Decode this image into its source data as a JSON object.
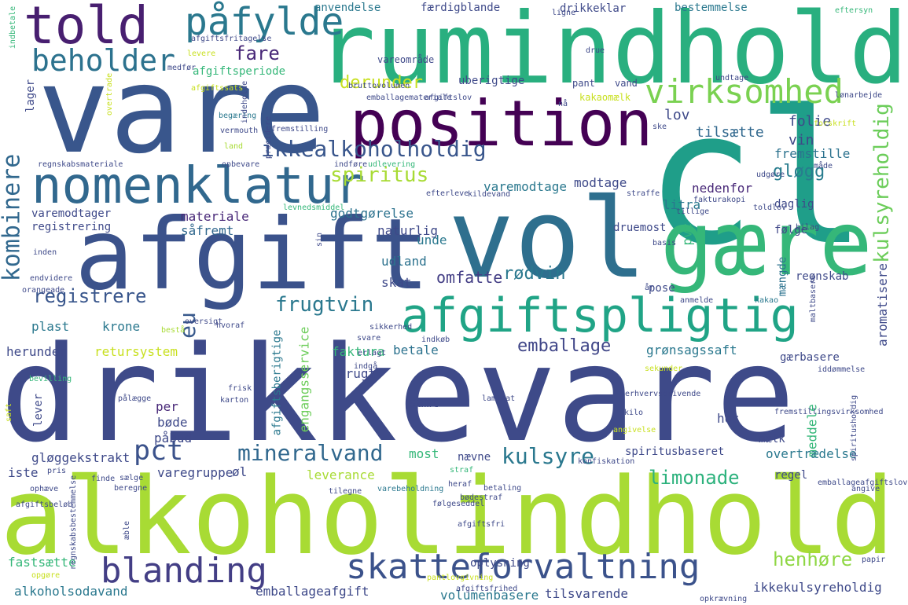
{
  "palette": [
    "#440154",
    "#3b528b",
    "#21918c",
    "#5ec962",
    "#a0da39",
    "#fde725"
  ],
  "words": [
    {
      "text": "drikkevare",
      "color": "#3e4a89"
    },
    {
      "text": "alkoholindhold",
      "color": "#a8db34"
    },
    {
      "text": "vare",
      "color": "#39568c"
    },
    {
      "text": "rumindhold",
      "color": "#29af7f"
    },
    {
      "text": "cl",
      "color": "#1f9e89"
    },
    {
      "text": "vol",
      "color": "#2e6f8e"
    },
    {
      "text": "afgift",
      "color": "#3b528b"
    },
    {
      "text": "gære",
      "color": "#35b779"
    },
    {
      "text": "position",
      "color": "#440154"
    },
    {
      "text": "nomenklatur",
      "color": "#31688e"
    },
    {
      "text": "afgiftspligtig",
      "color": "#20a486"
    },
    {
      "text": "told",
      "color": "#481f70"
    },
    {
      "text": "påfylde",
      "color": "#2a788e"
    },
    {
      "text": "beholder",
      "color": "#2c728e"
    },
    {
      "text": "virksomhed",
      "color": "#7ad151"
    },
    {
      "text": "skatteforvaltning",
      "color": "#3b528b"
    },
    {
      "text": "blanding",
      "color": "#433e85"
    },
    {
      "text": "kombinere",
      "color": "#31688e"
    },
    {
      "text": "ikkealkoholholdig",
      "color": "#39568c"
    },
    {
      "text": "kulsyreholdig",
      "color": "#6ccd5a"
    },
    {
      "text": "spiritus",
      "color": "#a8db34"
    },
    {
      "text": "registrere",
      "color": "#39568c"
    },
    {
      "text": "frugtvin",
      "color": "#2a788e"
    },
    {
      "text": "omfatte",
      "color": "#433e85"
    },
    {
      "text": "rødvin",
      "color": "#2a788e"
    },
    {
      "text": "mineralvand",
      "color": "#31688e"
    },
    {
      "text": "kulsyre",
      "color": "#2a788e"
    },
    {
      "text": "emballage",
      "color": "#404688"
    },
    {
      "text": "limonade",
      "color": "#2db27d"
    },
    {
      "text": "henhøre",
      "color": "#8fd744"
    },
    {
      "text": "pct",
      "color": "#3b528b"
    },
    {
      "text": "eu",
      "color": "#38598c"
    },
    {
      "text": "gløgg",
      "color": "#287c8e"
    },
    {
      "text": "derunder",
      "color": "#c8e020"
    },
    {
      "text": "vin",
      "color": "#3f4788"
    },
    {
      "text": "fare",
      "color": "#482878"
    },
    {
      "text": "tilsætte",
      "color": "#31688e"
    },
    {
      "text": "folie",
      "color": "#3e4989"
    },
    {
      "text": "lov",
      "color": "#3e4989"
    },
    {
      "text": "fremstille",
      "color": "#2c728e"
    },
    {
      "text": "litra",
      "color": "#2a788e"
    },
    {
      "text": "pvc",
      "color": "#35b779"
    },
    {
      "text": "nedenfor",
      "color": "#482878"
    },
    {
      "text": "daglig",
      "color": "#3e4989"
    },
    {
      "text": "følge",
      "color": "#3f4788"
    },
    {
      "text": "modtage",
      "color": "#3e4989"
    },
    {
      "text": "varemodtage",
      "color": "#2a788e"
    },
    {
      "text": "varemodtager",
      "color": "#3e4989"
    },
    {
      "text": "registrering",
      "color": "#3e4989"
    },
    {
      "text": "materiale",
      "color": "#482878"
    },
    {
      "text": "godtgørelse",
      "color": "#2c728e"
    },
    {
      "text": "såfremt",
      "color": "#31688e"
    },
    {
      "text": "naturlig",
      "color": "#3e4989"
    },
    {
      "text": "druemost",
      "color": "#3e4989"
    },
    {
      "text": "unde",
      "color": "#2a788e"
    },
    {
      "text": "udland",
      "color": "#2c728e"
    },
    {
      "text": "skat",
      "color": "#3e4989"
    },
    {
      "text": "pose",
      "color": "#3e4989"
    },
    {
      "text": "mængde",
      "color": "#2c728e"
    },
    {
      "text": "regnskab",
      "color": "#3e4989"
    },
    {
      "text": "plast",
      "color": "#2a788e"
    },
    {
      "text": "krone",
      "color": "#2a788e"
    },
    {
      "text": "aromatisere",
      "color": "#3e4989"
    },
    {
      "text": "herunder",
      "color": "#3e4989"
    },
    {
      "text": "retursystem",
      "color": "#c8e020"
    },
    {
      "text": "faktura",
      "color": "#35b779"
    },
    {
      "text": "engangsservice",
      "color": "#6ccd5a"
    },
    {
      "text": "betale",
      "color": "#2c728e"
    },
    {
      "text": "grønsagssaft",
      "color": "#2a788e"
    },
    {
      "text": "gærbasere",
      "color": "#3e4989"
    },
    {
      "text": "afgiftsberigtige",
      "color": "#2a788e"
    },
    {
      "text": "frugt",
      "color": "#3e4989"
    },
    {
      "text": "lever",
      "color": "#3e4989"
    },
    {
      "text": "per",
      "color": "#482878"
    },
    {
      "text": "bøde",
      "color": "#3e4989"
    },
    {
      "text": "påbud",
      "color": "#3e4989"
    },
    {
      "text": "samt",
      "color": "#3e4989"
    },
    {
      "text": "hos",
      "color": "#3e4989"
    },
    {
      "text": "meddele",
      "color": "#35b779"
    },
    {
      "text": "mælk",
      "color": "#3e4989"
    },
    {
      "text": "overtrædelse",
      "color": "#2a788e"
    },
    {
      "text": "regel",
      "color": "#3e4989"
    },
    {
      "text": "gløggekstrakt",
      "color": "#3e4989"
    },
    {
      "text": "most",
      "color": "#35b779"
    },
    {
      "text": "nævne",
      "color": "#3e4989"
    },
    {
      "text": "spiritusbaseret",
      "color": "#3e4989"
    },
    {
      "text": "iste",
      "color": "#3e4989"
    },
    {
      "text": "varegruppe",
      "color": "#3e4989"
    },
    {
      "text": "øl",
      "color": "#3e4989"
    },
    {
      "text": "leverance",
      "color": "#a8db34"
    },
    {
      "text": "fastsætte",
      "color": "#35b779"
    },
    {
      "text": "oplysning",
      "color": "#3e4989"
    },
    {
      "text": "alkoholsodavand",
      "color": "#2a788e"
    },
    {
      "text": "emballageafgift",
      "color": "#3e4989"
    },
    {
      "text": "volumenbasere",
      "color": "#2a788e"
    },
    {
      "text": "tilsvarende",
      "color": "#3e4989"
    },
    {
      "text": "ikkekulsyreholdig",
      "color": "#3e4989"
    },
    {
      "text": "anvendelse",
      "color": "#2a788e"
    },
    {
      "text": "færdigblande",
      "color": "#3e4989"
    },
    {
      "text": "drikkeklar",
      "color": "#3e4989"
    },
    {
      "text": "bestemmelse",
      "color": "#2a788e"
    },
    {
      "text": "vareområde",
      "color": "#3e4989"
    },
    {
      "text": "afgiftsperiode",
      "color": "#35b779"
    },
    {
      "text": "uberigtige",
      "color": "#3e4989"
    },
    {
      "text": "pant",
      "color": "#3e4989"
    },
    {
      "text": "vand",
      "color": "#3e4989"
    },
    {
      "text": "lager",
      "color": "#3e4989"
    },
    {
      "text": "bruttovolumen",
      "color": "#3e4989"
    },
    {
      "text": "emballagemateriale",
      "color": "#3e4989"
    },
    {
      "text": "afgiftslov",
      "color": "#3e4989"
    },
    {
      "text": "kakaomælk",
      "color": "#c8e020"
    },
    {
      "text": "fremstilling",
      "color": "#3e4989"
    },
    {
      "text": "vermouth",
      "color": "#3e4989"
    },
    {
      "text": "begæring",
      "color": "#2a788e"
    },
    {
      "text": "regnskabsmateriale",
      "color": "#3e4989"
    },
    {
      "text": "opbevare",
      "color": "#3e4989"
    },
    {
      "text": "indføre",
      "color": "#3e4989"
    },
    {
      "text": "udlevering",
      "color": "#35b779"
    },
    {
      "text": "udgøre",
      "color": "#3e4989"
    },
    {
      "text": "efterleve",
      "color": "#3e4989"
    },
    {
      "text": "kildevand",
      "color": "#3e4989"
    },
    {
      "text": "straffe",
      "color": "#3e4989"
    },
    {
      "text": "fakturakopi",
      "color": "#3e4989"
    },
    {
      "text": "toldlov",
      "color": "#3e4989"
    },
    {
      "text": "levnedsmiddel",
      "color": "#35b779"
    },
    {
      "text": "tillige",
      "color": "#3e4989"
    },
    {
      "text": "bilag",
      "color": "#3e4989"
    },
    {
      "text": "basis",
      "color": "#3e4989"
    },
    {
      "text": "inden",
      "color": "#3e4989"
    },
    {
      "text": "endvidere",
      "color": "#3e4989"
    },
    {
      "text": "orangeade",
      "color": "#3e4989"
    },
    {
      "text": "anmelde",
      "color": "#3e4989"
    },
    {
      "text": "kakao",
      "color": "#2a788e"
    },
    {
      "text": "maltbasere",
      "color": "#3e4989"
    },
    {
      "text": "oversigt",
      "color": "#3e4989"
    },
    {
      "text": "bestå",
      "color": "#a8db34"
    },
    {
      "text": "hvoraf",
      "color": "#3e4989"
    },
    {
      "text": "sikkerhed",
      "color": "#3e4989"
    },
    {
      "text": "svare",
      "color": "#3e4989"
    },
    {
      "text": "indkøb",
      "color": "#3e4989"
    },
    {
      "text": "sekunder",
      "color": "#c8e020"
    },
    {
      "text": "iddømmelse",
      "color": "#3e4989"
    },
    {
      "text": "indgå",
      "color": "#3e4989"
    },
    {
      "text": "erlagt",
      "color": "#3e4989"
    },
    {
      "text": "frisk",
      "color": "#3e4989"
    },
    {
      "text": "karton",
      "color": "#3e4989"
    },
    {
      "text": "erhvervsdrivende",
      "color": "#3e4989"
    },
    {
      "text": "laminat",
      "color": "#3e4989"
    },
    {
      "text": "kilo",
      "color": "#3e4989"
    },
    {
      "text": "angivelse",
      "color": "#c8e020"
    },
    {
      "text": "konfiskation",
      "color": "#3e4989"
    },
    {
      "text": "straf",
      "color": "#35b779"
    },
    {
      "text": "heraf",
      "color": "#3e4989"
    },
    {
      "text": "bødestraf",
      "color": "#3e4989"
    },
    {
      "text": "varebeholdning",
      "color": "#2a788e"
    },
    {
      "text": "betaling",
      "color": "#3e4989"
    },
    {
      "text": "tilegne",
      "color": "#3e4989"
    },
    {
      "text": "ophæve",
      "color": "#3e4989"
    },
    {
      "text": "afgiftsbeløb",
      "color": "#3e4989"
    },
    {
      "text": "pris",
      "color": "#3e4989"
    },
    {
      "text": "sælge",
      "color": "#3e4989"
    },
    {
      "text": "finde",
      "color": "#3e4989"
    },
    {
      "text": "beregne",
      "color": "#3e4989"
    },
    {
      "text": "følgeseddel",
      "color": "#3e4989"
    },
    {
      "text": "afgiftsfri",
      "color": "#3e4989"
    },
    {
      "text": "angive",
      "color": "#3e4989"
    },
    {
      "text": "papir",
      "color": "#3e4989"
    },
    {
      "text": "pantlovgivning",
      "color": "#c8e020"
    },
    {
      "text": "afgiftsfrihed",
      "color": "#3e4989"
    },
    {
      "text": "opkrævning",
      "color": "#3e4989"
    },
    {
      "text": "opgøre",
      "color": "#c8e020"
    },
    {
      "text": "regnskabsbestemmelse",
      "color": "#3e4989"
    },
    {
      "text": "æble",
      "color": "#3e4989"
    },
    {
      "text": "saft",
      "color": "#c8e020"
    },
    {
      "text": "bevilling",
      "color": "#35b779"
    },
    {
      "text": "pålægge",
      "color": "#3e4989"
    },
    {
      "text": "indbetale",
      "color": "#35b779"
    },
    {
      "text": "medfør",
      "color": "#3e4989"
    },
    {
      "text": "levere",
      "color": "#c8e020"
    },
    {
      "text": "afgiftsfritagelse",
      "color": "#3e4989"
    },
    {
      "text": "afgiftssats",
      "color": "#c8e020"
    },
    {
      "text": "overtrade",
      "color": "#c8e020"
    },
    {
      "text": "indeholde",
      "color": "#3e4989"
    },
    {
      "text": "ligne",
      "color": "#3e4989"
    },
    {
      "text": "drue",
      "color": "#3e4989"
    },
    {
      "text": "undtage",
      "color": "#3e4989"
    },
    {
      "text": "lønarbejde",
      "color": "#3e4989"
    },
    {
      "text": "eftersyn",
      "color": "#35b779"
    },
    {
      "text": "forskrift",
      "color": "#c8e020"
    },
    {
      "text": "måde",
      "color": "#3e4989"
    },
    {
      "text": "nå",
      "color": "#3e4989"
    },
    {
      "text": "ske",
      "color": "#3e4989"
    },
    {
      "text": "præcidere",
      "color": "#3e4989"
    },
    {
      "text": "land",
      "color": "#a8db34"
    },
    {
      "text": "sin",
      "color": "#3e4989"
    },
    {
      "text": "år",
      "color": "#3e4989"
    },
    {
      "text": "fremstillingsvirksomhed",
      "color": "#3e4989"
    },
    {
      "text": "spiritusholdig",
      "color": "#3e4989"
    },
    {
      "text": "emballageafgiftslov",
      "color": "#3e4989"
    }
  ]
}
